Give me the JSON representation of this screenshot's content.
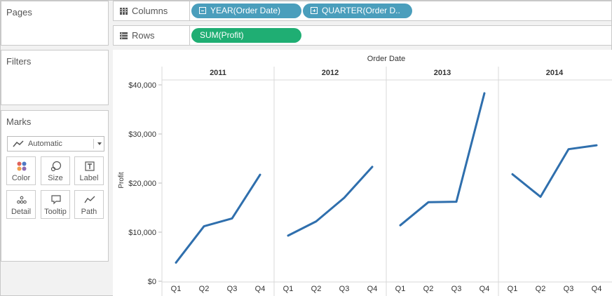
{
  "cards": {
    "pages": {
      "title": "Pages"
    },
    "filters": {
      "title": "Filters"
    },
    "marks": {
      "title": "Marks",
      "mark_type": "Automatic",
      "buttons": [
        {
          "label": "Color",
          "icon": "color-icon"
        },
        {
          "label": "Size",
          "icon": "size-icon"
        },
        {
          "label": "Label",
          "icon": "label-icon"
        },
        {
          "label": "Detail",
          "icon": "detail-icon"
        },
        {
          "label": "Tooltip",
          "icon": "tooltip-icon"
        },
        {
          "label": "Path",
          "icon": "path-icon"
        }
      ]
    }
  },
  "shelves": {
    "columns": {
      "label": "Columns",
      "pills": [
        {
          "text": "YEAR(Order Date)",
          "icon": "collapse-icon"
        },
        {
          "text": "QUARTER(Order D..",
          "icon": "expand-icon"
        }
      ]
    },
    "rows": {
      "label": "Rows",
      "pills": [
        {
          "text": "SUM(Profit)"
        }
      ]
    }
  },
  "colors": {
    "line": "#2f6fad",
    "dimension_pill": "#4a9ebc",
    "measure_pill": "#1fae73",
    "marks_palette": [
      "#e0625a",
      "#4e79c4",
      "#f0a04b",
      "#8c6bb1"
    ]
  },
  "chart_data": {
    "type": "line",
    "header_title": "Order Date",
    "ylabel": "Profit",
    "ylim": [
      0,
      40000
    ],
    "yticks": [
      0,
      10000,
      20000,
      30000,
      40000
    ],
    "ytick_labels": [
      "$0",
      "$10,000",
      "$20,000",
      "$30,000",
      "$40,000"
    ],
    "x_inner_labels": [
      "Q1",
      "Q2",
      "Q3",
      "Q4"
    ],
    "panes": [
      {
        "year": "2011",
        "values": [
          3800,
          11200,
          12800,
          21700
        ]
      },
      {
        "year": "2012",
        "values": [
          9300,
          12200,
          17000,
          23300
        ]
      },
      {
        "year": "2013",
        "values": [
          11400,
          16100,
          16200,
          38300
        ]
      },
      {
        "year": "2014",
        "values": [
          21800,
          17200,
          26900,
          27700
        ]
      }
    ]
  }
}
